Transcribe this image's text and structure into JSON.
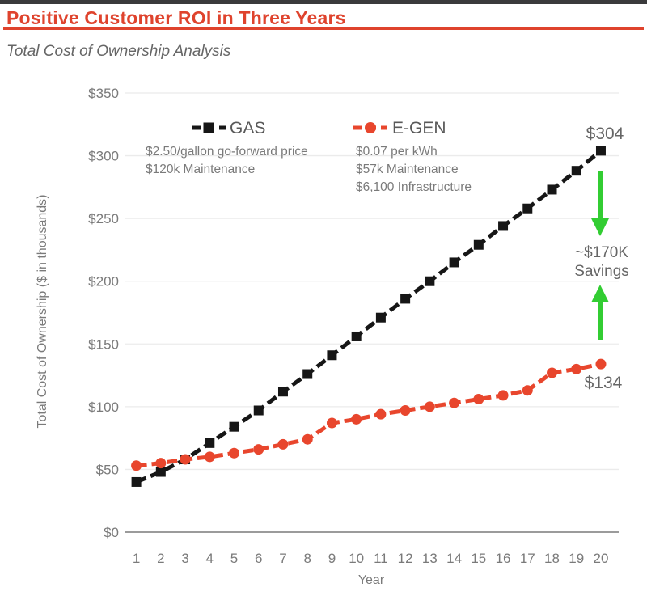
{
  "page": {
    "title": "Positive Customer ROI in Three Years",
    "subtitle": "Total Cost of Ownership Analysis"
  },
  "colors": {
    "title_red": "#df432d",
    "gas_black": "#161616",
    "egen_red": "#e8462d",
    "savings_green": "#32cd32",
    "label_gray": "#666666",
    "tick_gray": "#7a7a7a",
    "grid_gray": "#ebebeb",
    "axis_gray": "#9b9b9b"
  },
  "chart_data": {
    "type": "line",
    "title": "Total Cost of Ownership Analysis",
    "xlabel": "Year",
    "ylabel": "Total Cost of Ownership  ($ in thousands)",
    "x": [
      1,
      2,
      3,
      4,
      5,
      6,
      7,
      8,
      9,
      10,
      11,
      12,
      13,
      14,
      15,
      16,
      17,
      18,
      19,
      20
    ],
    "series": [
      {
        "name": "GAS",
        "color": "#161616",
        "marker": "square",
        "values": [
          40,
          48,
          58,
          71,
          84,
          97,
          112,
          126,
          141,
          156,
          171,
          186,
          200,
          215,
          229,
          244,
          258,
          273,
          288,
          304
        ]
      },
      {
        "name": "E-GEN",
        "color": "#e8462d",
        "marker": "circle",
        "values": [
          53,
          55,
          58,
          60,
          63,
          66,
          70,
          74,
          87,
          90,
          94,
          97,
          100,
          103,
          106,
          109,
          113,
          127,
          130,
          134
        ]
      }
    ],
    "ylim": [
      0,
      350
    ],
    "ytick_step": 50,
    "ytick_labels": [
      "$0",
      "$50",
      "$100",
      "$150",
      "$200",
      "$250",
      "$300",
      "$350"
    ],
    "grid": true,
    "legend_position": "top-center",
    "annotations": {
      "gas_notes": [
        "$2.50/gallon go-forward price",
        "$120k Maintenance"
      ],
      "egen_notes": [
        "$0.07 per kWh",
        "$57k Maintenance",
        "$6,100 Infrastructure"
      ],
      "gas_end_label": "$304",
      "egen_end_label": "$134",
      "savings_line1": "~$170K",
      "savings_line2": "Savings"
    }
  }
}
